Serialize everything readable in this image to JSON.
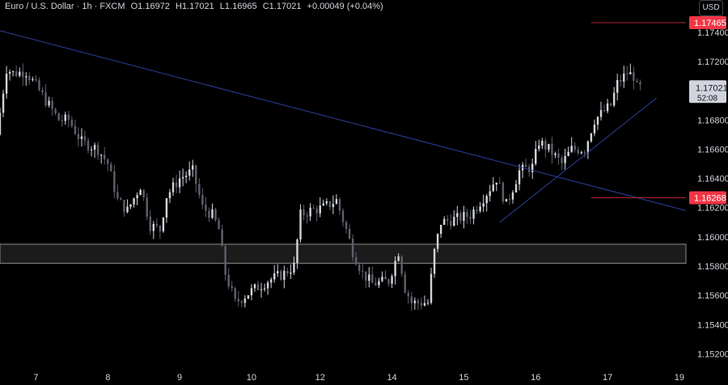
{
  "header": {
    "symbol": "Euro / U.S. Dollar · 1h · FXCM",
    "open": "O1.16972",
    "high": "H1.17021",
    "low": "L1.16965",
    "close": "C1.17021",
    "change": "+0.00049 (+0.04%)",
    "currency": "USD"
  },
  "price_axis": {
    "ticks": [
      "1.17400",
      "1.17200",
      "1.16800",
      "1.16600",
      "1.16400",
      "1.16200",
      "1.16000",
      "1.15800",
      "1.15600",
      "1.15400",
      "1.15200"
    ],
    "levels": [
      {
        "label": "1.17465",
        "value": 1.17465,
        "color": "#f23645"
      },
      {
        "label": "1.16268",
        "value": 1.16268,
        "color": "#f23645"
      }
    ],
    "current": {
      "label": "1.17021",
      "countdown": "52:08",
      "value": 1.17021
    }
  },
  "time_axis": {
    "ticks": [
      "7",
      "8",
      "9",
      "10",
      "12",
      "14",
      "15",
      "16",
      "17",
      "19"
    ]
  },
  "chart_data": {
    "type": "candlestick",
    "title": "Euro / U.S. Dollar · 1h · FXCM",
    "ylim": [
      1.1512,
      1.1762
    ],
    "xlim": [
      0,
      210
    ],
    "x_ticks": [
      {
        "x": 11,
        "label": "7"
      },
      {
        "x": 33,
        "label": "8"
      },
      {
        "x": 55,
        "label": "9"
      },
      {
        "x": 77,
        "label": "10"
      },
      {
        "x": 98,
        "label": "12"
      },
      {
        "x": 120,
        "label": "14"
      },
      {
        "x": 142,
        "label": "15"
      },
      {
        "x": 164,
        "label": "16"
      },
      {
        "x": 186,
        "label": "17"
      },
      {
        "x": 208,
        "label": "19"
      }
    ],
    "waypoints": [
      [
        0,
        1.167
      ],
      [
        3,
        1.1715
      ],
      [
        5,
        1.1712
      ],
      [
        9,
        1.1713
      ],
      [
        13,
        1.17
      ],
      [
        19,
        1.168
      ],
      [
        22,
        1.168
      ],
      [
        26,
        1.1665
      ],
      [
        31,
        1.166
      ],
      [
        34,
        1.165
      ],
      [
        37,
        1.1625
      ],
      [
        40,
        1.1618
      ],
      [
        44,
        1.1635
      ],
      [
        47,
        1.1608
      ],
      [
        50,
        1.1605
      ],
      [
        52,
        1.1628
      ],
      [
        56,
        1.164
      ],
      [
        60,
        1.1645
      ],
      [
        63,
        1.162
      ],
      [
        66,
        1.1615
      ],
      [
        68,
        1.1605
      ],
      [
        70,
        1.1575
      ],
      [
        73,
        1.1555
      ],
      [
        78,
        1.1563
      ],
      [
        83,
        1.157
      ],
      [
        88,
        1.1575
      ],
      [
        91,
        1.158
      ],
      [
        93,
        1.1615
      ],
      [
        96,
        1.1618
      ],
      [
        100,
        1.162
      ],
      [
        104,
        1.1625
      ],
      [
        107,
        1.1605
      ],
      [
        109,
        1.159
      ],
      [
        112,
        1.1575
      ],
      [
        115,
        1.1568
      ],
      [
        120,
        1.157
      ],
      [
        123,
        1.159
      ],
      [
        125,
        1.1565
      ],
      [
        127,
        1.1555
      ],
      [
        132,
        1.1555
      ],
      [
        134,
        1.159
      ],
      [
        136,
        1.161
      ],
      [
        140,
        1.1612
      ],
      [
        145,
        1.1615
      ],
      [
        150,
        1.163
      ],
      [
        153,
        1.164
      ],
      [
        156,
        1.1622
      ],
      [
        160,
        1.1645
      ],
      [
        164,
        1.1648
      ],
      [
        166,
        1.1665
      ],
      [
        169,
        1.166
      ],
      [
        173,
        1.165
      ],
      [
        176,
        1.166
      ],
      [
        180,
        1.166
      ],
      [
        183,
        1.168
      ],
      [
        188,
        1.169
      ],
      [
        190,
        1.1705
      ],
      [
        193,
        1.1712
      ],
      [
        195,
        1.171
      ],
      [
        196,
        1.1702
      ]
    ],
    "lines": [
      {
        "name": "",
        "points": [
          [
            0,
            1.1741
          ],
          [
            210,
            1.1618
          ]
        ],
        "color": "#2c3f9e"
      },
      {
        "name": "",
        "points": [
          [
            153,
            1.161
          ],
          [
            201,
            1.1695
          ]
        ],
        "color": "#2c3f9e"
      },
      {
        "name": "",
        "points": [
          [
            181,
            1.17465
          ],
          [
            210,
            1.17465
          ]
        ],
        "color": "#b2242f"
      },
      {
        "name": "",
        "points": [
          [
            181,
            1.16268
          ],
          [
            210,
            1.16268
          ]
        ],
        "color": "#b2242f"
      }
    ],
    "zone": {
      "from": 1.1582,
      "to": 1.1595,
      "color": "#1b1b1b"
    },
    "up_color": "#d1d4dc",
    "down_color": "#5d606b"
  }
}
